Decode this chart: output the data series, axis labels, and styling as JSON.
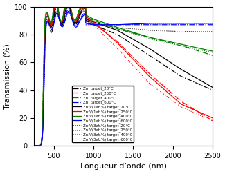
{
  "xlabel": "Longueur d’onde (nm)",
  "ylabel": "Transmission (%)",
  "xlim": [
    250,
    2500
  ],
  "ylim": [
    0,
    100
  ],
  "xticks": [
    500,
    1000,
    1500,
    2000,
    2500
  ],
  "yticks": [
    0,
    20,
    40,
    60,
    80,
    100
  ],
  "legend_entries": [
    "Zn  target_20°C",
    "Zn  target_250°C",
    "Zn  target_400°C",
    "Zn  target_600°C",
    "Zn:V(1at.%) target_20°C",
    "Zn:V(1at.%) target_250°C",
    "Zn:V(1at.%) target_400°C",
    "Zn:V(1at.%) target_600°C",
    "Zn:V(3at.%) target_20°C",
    "Zn:V(3at.%) target_250°C",
    "Zn:V(3at.%) target_400°C",
    "Zn:V(3at.%) target_600°C"
  ],
  "colors": [
    "black",
    "red",
    "green",
    "blue",
    "black",
    "red",
    "green",
    "blue",
    "black",
    "red",
    "green",
    "blue"
  ],
  "linestyles": [
    "dashdot",
    "dashdot",
    "dashdot",
    "dashdot",
    "solid",
    "solid",
    "solid",
    "solid",
    "dotted",
    "dotted",
    "dotted",
    "dotted"
  ],
  "linewidths": [
    0.9,
    0.9,
    0.9,
    0.9,
    0.9,
    0.9,
    0.9,
    0.9,
    0.8,
    0.8,
    0.8,
    0.8
  ],
  "legend_fontsize": 4.0,
  "axis_fontsize": 8,
  "tick_fontsize": 7
}
